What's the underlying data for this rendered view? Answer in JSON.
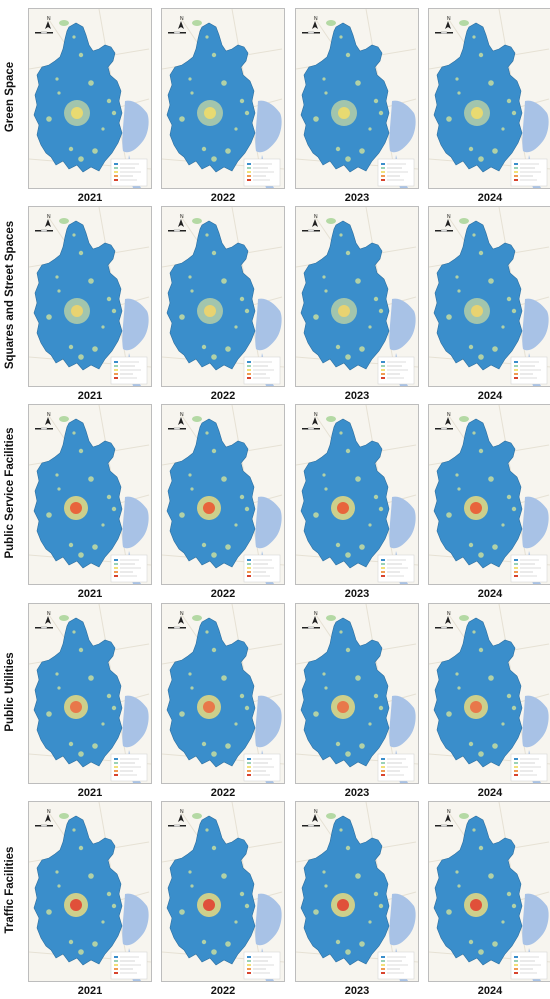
{
  "years": [
    "2021",
    "2022",
    "2023",
    "2024"
  ],
  "rows": [
    {
      "label": "Green Space",
      "hotspot_color": "#f0dc6a"
    },
    {
      "label": "Squares and Street Spaces",
      "hotspot_color": "#f0d46a"
    },
    {
      "label": "Public Service Facilities",
      "hotspot_color": "#e8643c"
    },
    {
      "label": "Public Utilities",
      "hotspot_color": "#e8784a"
    },
    {
      "label": "Traffic Facilities",
      "hotspot_color": "#e0503a"
    }
  ],
  "colors": {
    "region_fill": "#3a8ecb",
    "sea": "#a8c2e6",
    "background": "#f7f5ef",
    "minor_hotspot": "#d9e79a",
    "lake": "#b4d9a4"
  },
  "icons": [
    "north-arrow-icon",
    "scale-bar-icon",
    "legend-icon"
  ]
}
